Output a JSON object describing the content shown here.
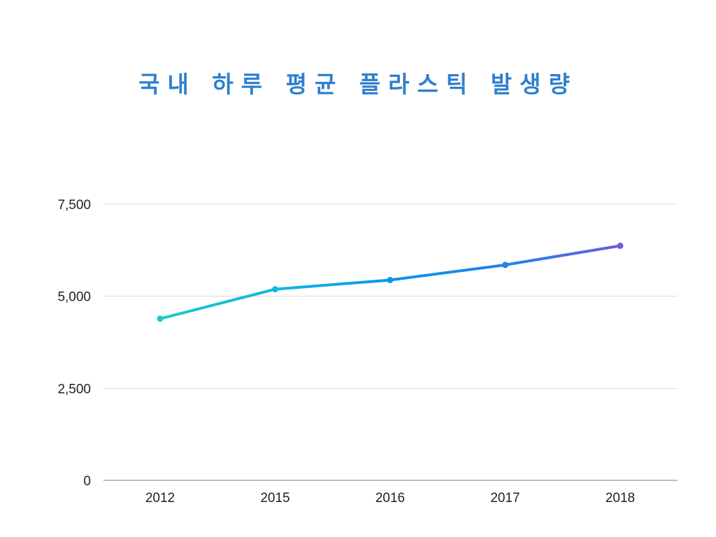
{
  "chart_data": {
    "type": "line",
    "title": "국내 하루 평균 플라스틱 발생량",
    "categories": [
      "2012",
      "2015",
      "2016",
      "2017",
      "2018"
    ],
    "series": [
      {
        "values": [
          4390,
          5190,
          5440,
          5850,
          6370
        ]
      }
    ],
    "ylim": [
      0,
      7500
    ],
    "yticks": [
      0,
      2500,
      5000,
      7500
    ],
    "ytick_labels": [
      "0",
      "2,500",
      "5,000",
      "7,500"
    ],
    "xlabel": "",
    "ylabel": "",
    "grid": true,
    "legend": "none",
    "colors": [
      "#1ec8c8",
      "#12b8de",
      "#0a96ec",
      "#1f84e8",
      "#6b5ce0"
    ]
  }
}
